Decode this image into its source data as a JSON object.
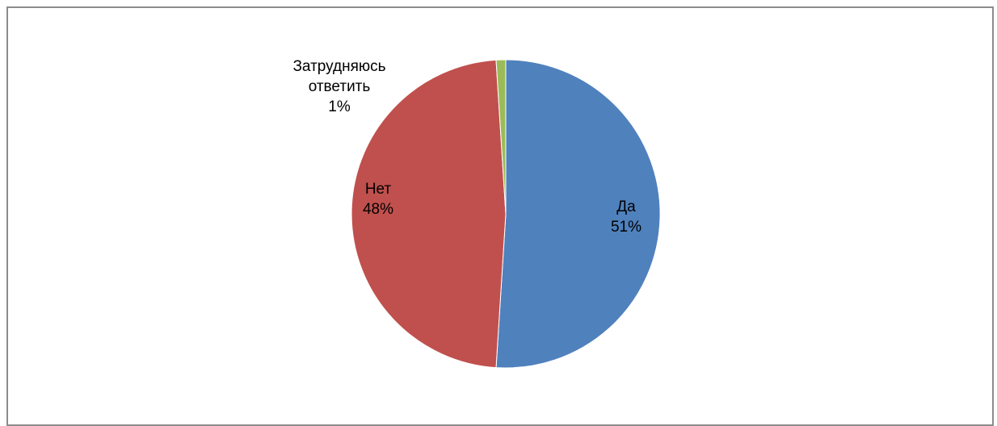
{
  "chart_data": {
    "type": "pie",
    "categories": [
      "Да",
      "Нет",
      "Затрудняюсь ответить"
    ],
    "values": [
      51,
      48,
      1
    ],
    "colors": [
      "#4f81bd",
      "#c0504d",
      "#9bbb59"
    ],
    "title": "",
    "legend": "none",
    "labels": [
      {
        "lines": [
          "Да",
          "51%"
        ]
      },
      {
        "lines": [
          "Нет",
          "48%"
        ]
      },
      {
        "lines": [
          "Затрудняюсь",
          "ответить",
          "1%"
        ]
      }
    ]
  }
}
